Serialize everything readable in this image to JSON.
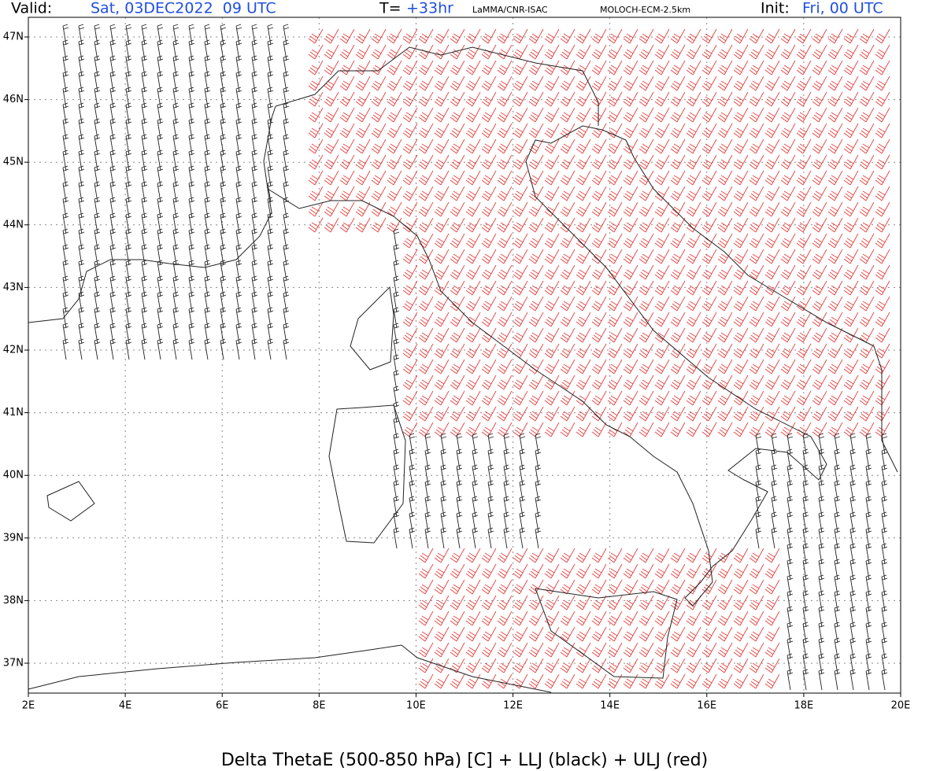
{
  "header": {
    "valid_label": "Valid:",
    "valid_value": "Sat, 03DEC2022  09 UTC",
    "t_label": "T=",
    "t_value": "+33hr",
    "source": "LaMMA/CNR-ISAC",
    "model": "MOLOCH-ECM-2.5km",
    "init_label": "Init:",
    "init_value": "Fri, 00 UTC"
  },
  "map": {
    "lon_ticks": [
      "2E",
      "4E",
      "6E",
      "8E",
      "10E",
      "12E",
      "14E",
      "16E",
      "18E",
      "20E"
    ],
    "lat_ticks": [
      "47N",
      "46N",
      "45N",
      "44N",
      "43N",
      "42N",
      "41N",
      "40N",
      "39N",
      "38N",
      "37N"
    ]
  },
  "caption": "Delta ThetaE (500-850 hPa) [C] + LLJ (black) + ULJ (red)"
}
